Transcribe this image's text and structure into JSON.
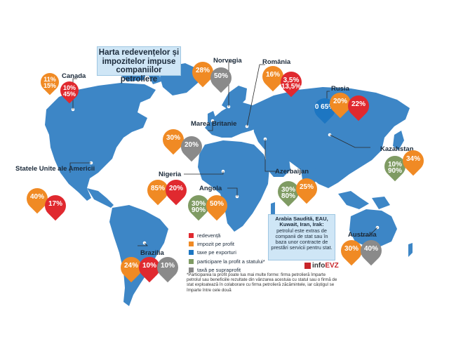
{
  "title": "Harta redevențelor și impozitelor impuse companiilor petroliere",
  "colors": {
    "ocean": "#ffffff",
    "land": "#3d86c6",
    "land_dark": "#2f6fa9",
    "redeventa": "#e0292f",
    "impozit_pe_profit": "#f08a24",
    "taxe_pe_exporturi": "#1d76c2",
    "participare": "#7f9b63",
    "taxa_pe_supraprofit": "#8a8a8a"
  },
  "legend": [
    {
      "label": "redevență",
      "color_key": "redeventa"
    },
    {
      "label": "impozit pe profit",
      "color_key": "impozit_pe_profit"
    },
    {
      "label": "taxe pe exporturi",
      "color_key": "taxe_pe_exporturi"
    },
    {
      "label": "participare la profit a statului*",
      "color_key": "participare"
    },
    {
      "label": "taxă pe supraprofit",
      "color_key": "taxa_pe_supraprofit"
    }
  ],
  "countries": {
    "canada": {
      "label": "Canada",
      "pins": [
        {
          "text": "11% 15%",
          "color_key": "impozit_pe_profit"
        },
        {
          "text": "10% 45%",
          "color_key": "redeventa"
        }
      ]
    },
    "usa": {
      "label": "Statele Unite ale Americii",
      "pins": [
        {
          "text": "40%",
          "color_key": "impozit_pe_profit"
        },
        {
          "text": "17%",
          "color_key": "redeventa"
        }
      ]
    },
    "brazil": {
      "label": "Brazilia",
      "pins": [
        {
          "text": "24%",
          "color_key": "impozit_pe_profit"
        },
        {
          "text": "10%",
          "color_key": "redeventa"
        },
        {
          "text": "10%",
          "color_key": "taxa_pe_supraprofit"
        }
      ]
    },
    "norway": {
      "label": "Norvegia",
      "pins": [
        {
          "text": "28%",
          "color_key": "impozit_pe_profit"
        },
        {
          "text": "50%",
          "color_key": "taxa_pe_supraprofit"
        }
      ]
    },
    "uk": {
      "label": "Marea Britanie",
      "pins": [
        {
          "text": "30%",
          "color_key": "impozit_pe_profit"
        },
        {
          "text": "20%",
          "color_key": "taxa_pe_supraprofit"
        }
      ]
    },
    "romania": {
      "label": "România",
      "pins": [
        {
          "text": "16%",
          "color_key": "impozit_pe_profit"
        },
        {
          "text": "3,5% 13,5%",
          "color_key": "redeventa"
        }
      ]
    },
    "russia": {
      "label": "Rusia",
      "pins": [
        {
          "text": "0 65%",
          "color_key": "taxe_pe_exporturi"
        },
        {
          "text": "20%",
          "color_key": "impozit_pe_profit"
        },
        {
          "text": "22%",
          "color_key": "redeventa"
        }
      ]
    },
    "kazakhstan": {
      "label": "Kazahstan",
      "pins": [
        {
          "text": "10% 90%",
          "color_key": "participare"
        },
        {
          "text": "34%",
          "color_key": "impozit_pe_profit"
        }
      ]
    },
    "azerbaijan": {
      "label": "Azerbaijan",
      "pins": [
        {
          "text": "30% 80%",
          "color_key": "participare"
        },
        {
          "text": "25%",
          "color_key": "impozit_pe_profit"
        }
      ]
    },
    "nigeria": {
      "label": "Nigeria",
      "pins": [
        {
          "text": "85%",
          "color_key": "impozit_pe_profit"
        },
        {
          "text": "20%",
          "color_key": "redeventa"
        }
      ]
    },
    "angola": {
      "label": "Angola",
      "pins": [
        {
          "text": "30% 90%",
          "color_key": "participare"
        },
        {
          "text": "50%",
          "color_key": "impozit_pe_profit"
        }
      ]
    },
    "australia": {
      "label": "Australia",
      "pins": [
        {
          "text": "30%",
          "color_key": "impozit_pe_profit"
        },
        {
          "text": "40%",
          "color_key": "taxa_pe_supraprofit"
        }
      ]
    }
  },
  "note": {
    "heading": "Arabia Saudită, EAU, Kuwait, Iran, Irak:",
    "body": "petrolul este extras de companii de stat sau în baza unor contracte de prestări servicii pentru stat."
  },
  "footnote": "*Participarea la profit poate lua mai multe forme: firma petrolieră împarte petrolul sau beneficiile rezultate din vânzarea acestuia cu statul sau o firmă de stat exploatează în colaborare cu firma petrolieră zăcămintele, iar câștigul se împarte între cele două",
  "brand": {
    "prefix": "info",
    "suffix": "EVZ"
  }
}
